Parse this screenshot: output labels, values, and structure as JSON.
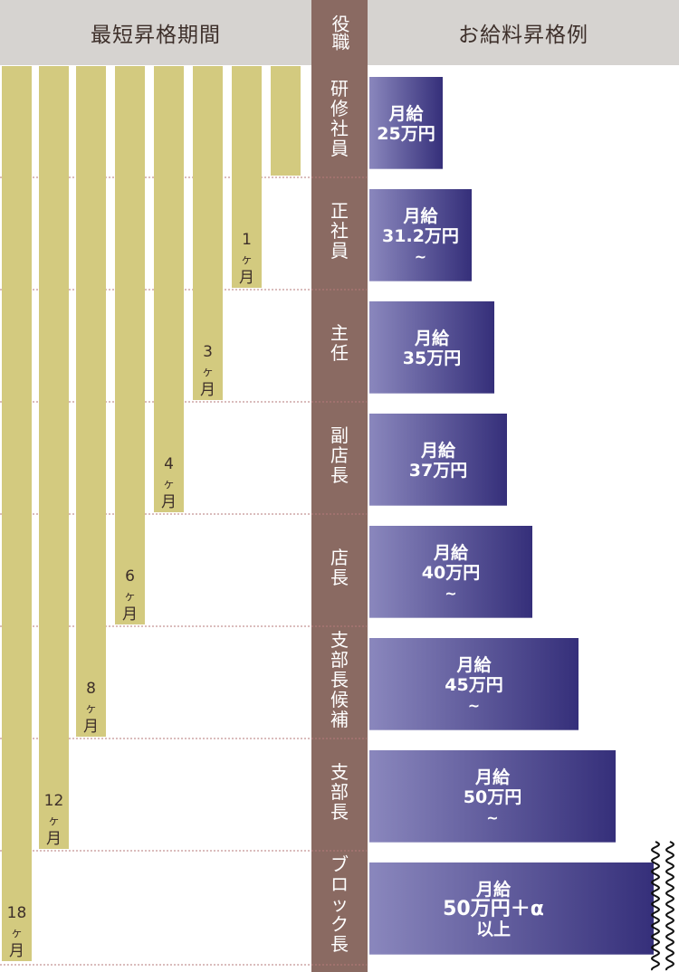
{
  "headers": {
    "period": "最短昇格期間",
    "role": "役職",
    "salary": "お給料昇格例"
  },
  "chart_data": {
    "type": "bar",
    "categories": [
      "研修社員",
      "正社員",
      "主任",
      "副店長",
      "店長",
      "支部長候補",
      "支部長",
      "ブロック長"
    ],
    "period_labels": [
      "1ヶ月",
      "3ヶ月",
      "4ヶ月",
      "6ヶ月",
      "8ヶ月",
      "12ヶ月",
      "18ヶ月"
    ],
    "salary_labels": [
      [
        "月給",
        "25万円"
      ],
      [
        "月給",
        "31.2万円",
        "~"
      ],
      [
        "月給",
        "35万円"
      ],
      [
        "月給",
        "37万円"
      ],
      [
        "月給",
        "40万円",
        "~"
      ],
      [
        "月給",
        "45万円",
        "~"
      ],
      [
        "月給",
        "50万円",
        "~"
      ],
      [
        "月給",
        "50万円＋α",
        "以上"
      ]
    ],
    "colors": {
      "period_bar": "#d3ca7f",
      "role_column": "#8a6a62",
      "salary_dark": "#352f7a",
      "salary_light": "#8a87bd",
      "divider": "#b67a7a",
      "header_bg": "#d6d3d0"
    }
  }
}
